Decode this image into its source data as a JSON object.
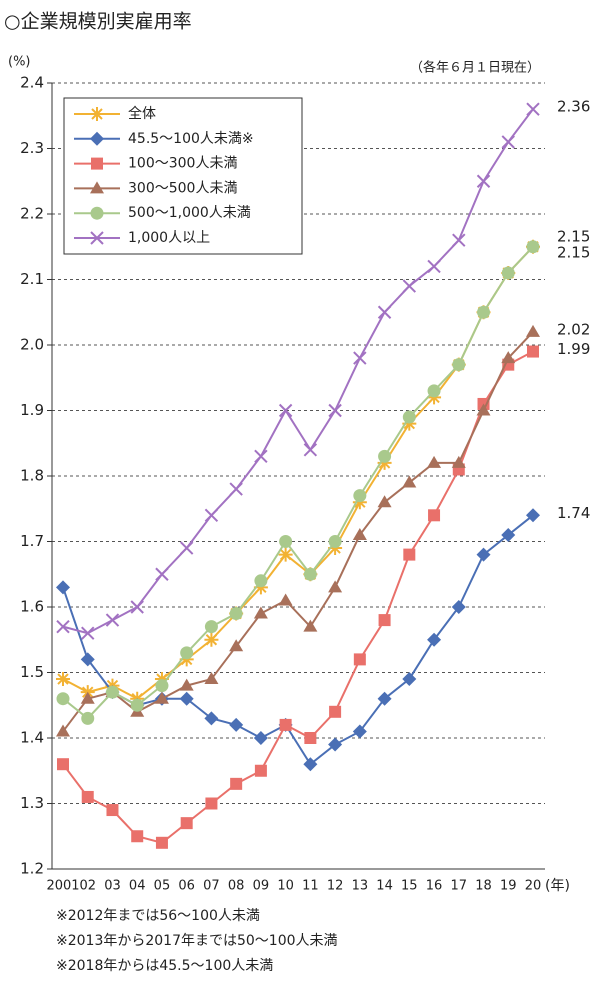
{
  "chart_data": {
    "type": "line",
    "title": "○企業規模別実雇用率",
    "subtitle": "（各年６月１日現在）",
    "y_axis_label": "(%)",
    "x_axis_label": "(年)",
    "categories": [
      "2001",
      "02",
      "03",
      "04",
      "05",
      "06",
      "07",
      "08",
      "09",
      "10",
      "11",
      "12",
      "13",
      "14",
      "15",
      "16",
      "17",
      "18",
      "19",
      "20"
    ],
    "series": [
      {
        "name": "全体",
        "color": "#f2b233",
        "marker": "asterisk",
        "values": [
          1.49,
          1.47,
          1.48,
          1.46,
          1.49,
          1.52,
          1.55,
          1.59,
          1.63,
          1.68,
          1.65,
          1.69,
          1.76,
          1.82,
          1.88,
          1.92,
          1.97,
          2.05,
          2.11,
          2.15
        ]
      },
      {
        "name": "45.5～100人未満※",
        "color": "#4a6fb5",
        "marker": "diamond",
        "values": [
          1.63,
          1.52,
          1.47,
          1.45,
          1.46,
          1.46,
          1.43,
          1.42,
          1.4,
          1.42,
          1.36,
          1.39,
          1.41,
          1.46,
          1.49,
          1.55,
          1.6,
          1.68,
          1.71,
          1.74
        ]
      },
      {
        "name": "100～300人未満",
        "color": "#e9706a",
        "marker": "square",
        "values": [
          1.36,
          1.31,
          1.29,
          1.25,
          1.24,
          1.27,
          1.3,
          1.33,
          1.35,
          1.42,
          1.4,
          1.44,
          1.52,
          1.58,
          1.68,
          1.74,
          1.81,
          1.91,
          1.97,
          1.99
        ]
      },
      {
        "name": "300～500人未満",
        "color": "#a8705a",
        "marker": "triangle",
        "values": [
          1.41,
          1.46,
          1.47,
          1.44,
          1.46,
          1.48,
          1.49,
          1.54,
          1.59,
          1.61,
          1.57,
          1.63,
          1.71,
          1.76,
          1.79,
          1.82,
          1.82,
          1.9,
          1.98,
          2.02
        ]
      },
      {
        "name": "500～1,000人未満",
        "color": "#a9c98c",
        "marker": "circle",
        "values": [
          1.46,
          1.43,
          1.47,
          1.45,
          1.48,
          1.53,
          1.57,
          1.59,
          1.64,
          1.7,
          1.65,
          1.7,
          1.77,
          1.83,
          1.89,
          1.93,
          1.97,
          2.05,
          2.11,
          2.15
        ]
      },
      {
        "name": "1,000人以上",
        "color": "#a272c2",
        "marker": "cross",
        "values": [
          1.57,
          1.56,
          1.58,
          1.6,
          1.65,
          1.69,
          1.74,
          1.78,
          1.83,
          1.9,
          1.84,
          1.9,
          1.98,
          2.05,
          2.09,
          2.12,
          2.16,
          2.25,
          2.31,
          2.36
        ]
      }
    ],
    "ylim": [
      1.2,
      2.4
    ],
    "yticks": [
      1.2,
      1.3,
      1.4,
      1.5,
      1.6,
      1.7,
      1.8,
      1.9,
      {
        "value": 2.0,
        "label": "2.0"
      },
      2.1,
      2.2,
      2.3,
      2.4
    ],
    "grid": true,
    "legend": "upper left",
    "notes": [
      "※2012年までは56～100人未満",
      "※2013年から2017年までは50～100人未満",
      "※2018年からは45.5～100人未満"
    ]
  }
}
